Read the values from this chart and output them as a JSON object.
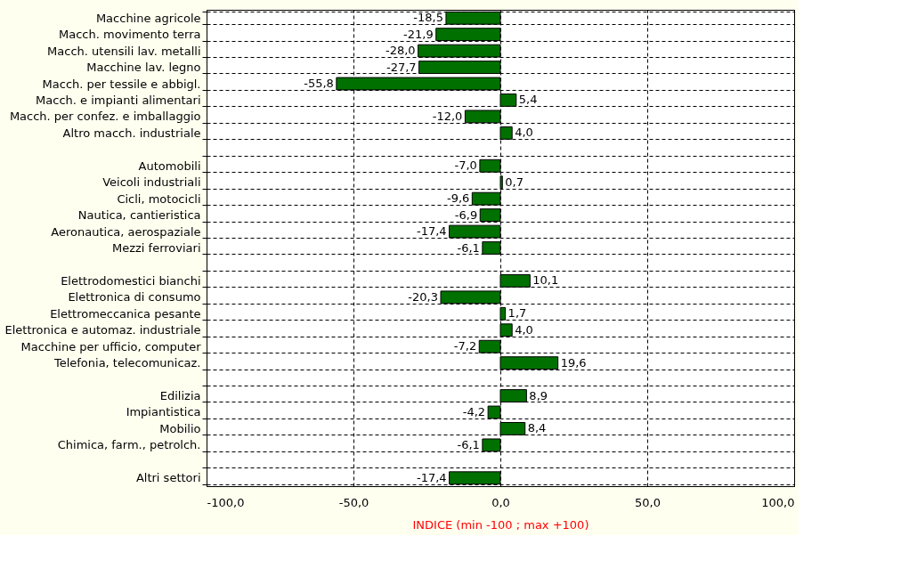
{
  "chart_data": {
    "type": "bar",
    "orientation": "horizontal",
    "xlabel": "INDICE (min -100 ; max +100)",
    "categories": [
      "Macchine agricole",
      "Macch. movimento terra",
      "Macch. utensili lav. metalli",
      "Macchine lav. legno",
      "Macch. per tessile e abbigl.",
      "Macch. e impianti alimentari",
      "Macch. per confez. e imballaggio",
      "Altro macch. industriale",
      null,
      "Automobili",
      "Veicoli industriali",
      "Cicli, motocicli",
      "Nautica, cantieristica",
      "Aeronautica, aerospaziale",
      "Mezzi ferroviari",
      null,
      "Elettrodomestici bianchi",
      "Elettronica di consumo",
      "Elettromeccanica pesante",
      "Elettronica e automaz. industriale",
      "Macchine per ufficio, computer",
      "Telefonia, telecomunicaz.",
      null,
      "Edilizia",
      "Impiantistica",
      "Mobilio",
      "Chimica, farm., petrolch.",
      null,
      "Altri settori"
    ],
    "values": [
      -18.5,
      -21.9,
      -28.0,
      -27.7,
      -55.8,
      5.4,
      -12.0,
      4.0,
      null,
      -7.0,
      0.7,
      -9.6,
      -6.9,
      -17.4,
      -6.1,
      null,
      10.1,
      -20.3,
      1.7,
      4.0,
      -7.2,
      19.6,
      null,
      8.9,
      -4.2,
      8.4,
      -6.1,
      null,
      -17.4
    ],
    "value_labels": [
      "-18,5",
      "-21,9",
      "-28,0",
      "-27,7",
      "-55,8",
      "5,4",
      "-12,0",
      "4,0",
      null,
      "-7,0",
      "0,7",
      "-9,6",
      "-6,9",
      "-17,4",
      "-6,1",
      null,
      "10,1",
      "-20,3",
      "1,7",
      "4,0",
      "-7,2",
      "19,6",
      null,
      "8,9",
      "-4,2",
      "8,4",
      "-6,1",
      null,
      "-17,4"
    ],
    "color": "#007000",
    "xlim": [
      -100,
      100
    ],
    "xticks": [
      {
        "value": -100,
        "label": "-100,0"
      },
      {
        "value": -50,
        "label": "-50,0"
      },
      {
        "value": 0,
        "label": "0,0"
      },
      {
        "value": 50,
        "label": "50,0"
      },
      {
        "value": 100,
        "label": "100,0"
      }
    ],
    "grid": true
  }
}
